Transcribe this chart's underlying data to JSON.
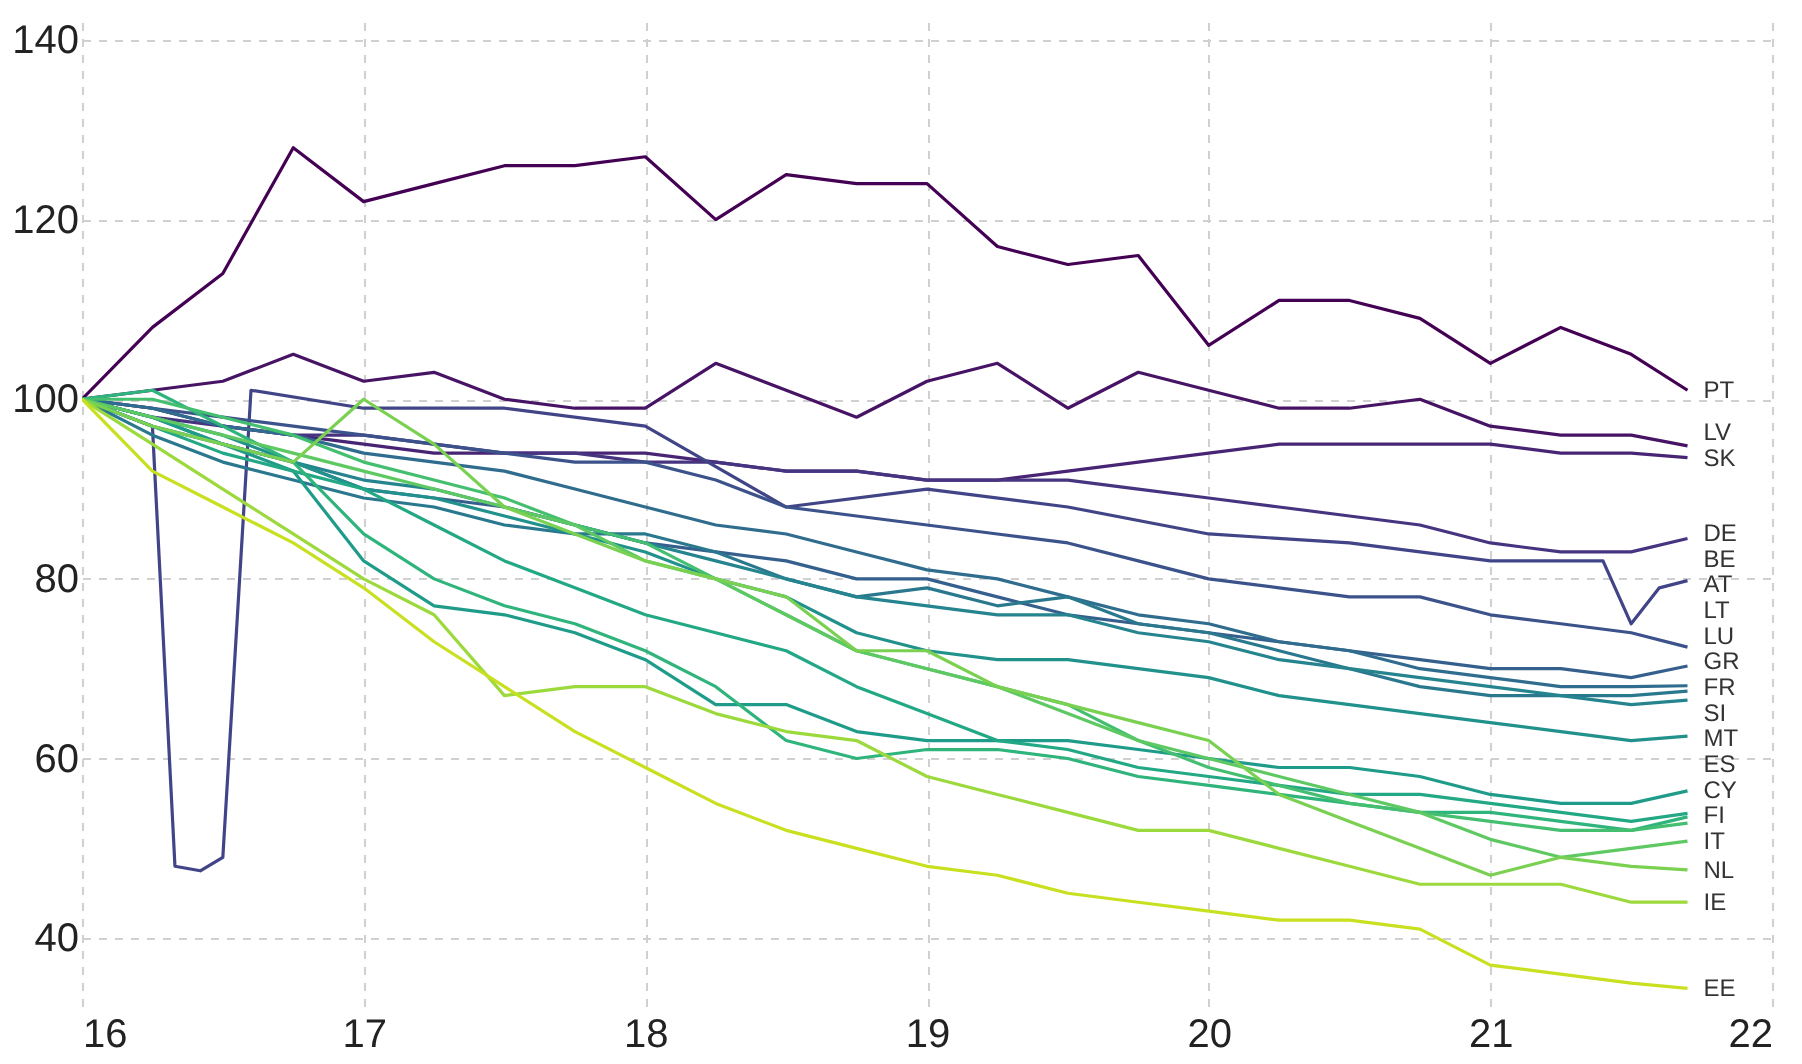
{
  "chart_data": {
    "type": "line",
    "x": [
      16,
      16.25,
      16.5,
      16.75,
      17,
      17.25,
      17.5,
      17.75,
      18,
      18.25,
      18.5,
      18.75,
      19,
      19.25,
      19.5,
      19.75,
      20,
      20.25,
      20.5,
      20.75,
      21,
      21.25,
      21.5,
      21.7
    ],
    "xlim": [
      16,
      22
    ],
    "xticks": [
      16,
      17,
      18,
      19,
      20,
      21,
      22
    ],
    "ylim": [
      32,
      142
    ],
    "yticks": [
      40,
      60,
      80,
      100,
      120,
      140
    ],
    "grid": true,
    "legend": false,
    "series": [
      {
        "name": "PT",
        "color": "#440154",
        "values": [
          100,
          108,
          114,
          128,
          122,
          124,
          126,
          126,
          127,
          120,
          125,
          124,
          124,
          117,
          115,
          116,
          106,
          111,
          111,
          109,
          104,
          108,
          105,
          101
        ]
      },
      {
        "name": "LV",
        "color": "#471365",
        "values": [
          100,
          101,
          102,
          105,
          102,
          103,
          100,
          99,
          99,
          104,
          101,
          98,
          102,
          104,
          99,
          103,
          101,
          99,
          99,
          100,
          97,
          96,
          96,
          94.8
        ]
      },
      {
        "name": "SK",
        "color": "#482475",
        "values": [
          100,
          99,
          97,
          96,
          95,
          94,
          94,
          94,
          94,
          93,
          92,
          92,
          91,
          91,
          92,
          93,
          94,
          95,
          95,
          95,
          95,
          94,
          94,
          93.5
        ]
      },
      {
        "name": "DE",
        "color": "#463480",
        "values": [
          100,
          98,
          97,
          96,
          96,
          95,
          94,
          94,
          93,
          93,
          92,
          92,
          91,
          91,
          91,
          90,
          89,
          88,
          87,
          86,
          84,
          83,
          83,
          84.5
        ]
      },
      {
        "name": "BE",
        "color": "#414487",
        "x": [
          16,
          16.25,
          16.33,
          16.42,
          16.5,
          16.6,
          17,
          17.5,
          18,
          18.5,
          19,
          19.5,
          20,
          20.5,
          21,
          21.4,
          21.5,
          21.6,
          21.7
        ],
        "values": [
          100,
          97,
          48,
          47.5,
          49,
          101,
          99,
          99,
          97,
          88,
          90,
          88,
          85,
          84,
          82,
          82,
          75,
          79,
          79.8
        ]
      },
      {
        "name": "AT",
        "color": "#3b528b",
        "values": [
          100,
          99,
          98,
          97,
          96,
          95,
          94,
          93,
          93,
          91,
          88,
          87,
          86,
          85,
          84,
          82,
          80,
          79,
          78,
          78,
          76,
          75,
          74,
          72.4
        ]
      },
      {
        "name": "LT",
        "color": "#355f8d",
        "values": [
          100,
          97,
          95,
          93,
          90,
          89,
          88,
          86,
          84,
          83,
          82,
          80,
          80,
          78,
          76,
          75,
          74,
          73,
          72,
          71,
          70,
          70,
          69,
          70.3
        ]
      },
      {
        "name": "LU",
        "color": "#2f6c8e",
        "values": [
          100,
          99,
          97,
          96,
          94,
          93,
          92,
          90,
          88,
          86,
          85,
          83,
          81,
          80,
          78,
          76,
          75,
          73,
          72,
          70,
          69,
          68,
          68,
          68.1
        ]
      },
      {
        "name": "GR",
        "color": "#2a788e",
        "values": [
          100,
          96,
          93,
          91,
          89,
          88,
          86,
          85,
          85,
          83,
          80,
          78,
          79,
          77,
          78,
          75,
          74,
          72,
          70,
          68,
          67,
          67,
          67,
          67.5
        ]
      },
      {
        "name": "FR",
        "color": "#25848e",
        "values": [
          100,
          98,
          95,
          93,
          91,
          90,
          88,
          86,
          84,
          82,
          80,
          78,
          77,
          76,
          76,
          74,
          73,
          71,
          70,
          69,
          68,
          67,
          66,
          66.5
        ]
      },
      {
        "name": "SI",
        "color": "#21918c",
        "values": [
          100,
          98,
          96,
          93,
          90,
          89,
          87,
          85,
          83,
          80,
          78,
          74,
          72,
          71,
          71,
          70,
          69,
          67,
          66,
          65,
          64,
          63,
          62,
          62.5
        ]
      },
      {
        "name": "MT",
        "color": "#1e9c89",
        "values": [
          100,
          98,
          95,
          92,
          82,
          77,
          76,
          74,
          71,
          66,
          66,
          63,
          62,
          62,
          62,
          61,
          60,
          59,
          59,
          58,
          56,
          55,
          55,
          56.4
        ]
      },
      {
        "name": "ES",
        "color": "#22a884",
        "values": [
          100,
          97,
          94,
          92,
          90,
          86,
          82,
          79,
          76,
          74,
          72,
          68,
          65,
          62,
          61,
          59,
          58,
          57,
          56,
          56,
          55,
          54,
          53,
          53.9
        ]
      },
      {
        "name": "CY",
        "color": "#2fb47c",
        "values": [
          100,
          101,
          97,
          93,
          85,
          80,
          77,
          75,
          72,
          68,
          62,
          60,
          61,
          61,
          60,
          58,
          57,
          56,
          55,
          54,
          54,
          53,
          52,
          53.5
        ]
      },
      {
        "name": "FI",
        "color": "#44bf70",
        "values": [
          100,
          100,
          98,
          96,
          93,
          91,
          89,
          86,
          84,
          80,
          76,
          72,
          70,
          68,
          66,
          62,
          59,
          57,
          55,
          54,
          53,
          52,
          52,
          52.8
        ]
      },
      {
        "name": "IT",
        "color": "#5ec962",
        "values": [
          100,
          98,
          96,
          94,
          92,
          90,
          88,
          86,
          82,
          80,
          76,
          72,
          70,
          68,
          65,
          62,
          60,
          58,
          56,
          54,
          51,
          49,
          50,
          50.8
        ]
      },
      {
        "name": "NL",
        "color": "#7ad151",
        "values": [
          100,
          97,
          95,
          93,
          100,
          95,
          88,
          85,
          82,
          80,
          78,
          72,
          72,
          68,
          66,
          64,
          62,
          56,
          53,
          50,
          47,
          49,
          48,
          47.6
        ]
      },
      {
        "name": "IE",
        "color": "#9bd93c",
        "values": [
          100,
          95,
          90,
          85,
          80,
          76,
          67,
          68,
          68,
          65,
          63,
          62,
          58,
          56,
          54,
          52,
          52,
          50,
          48,
          46,
          46,
          46,
          44,
          44
        ]
      },
      {
        "name": "EE",
        "color": "#c8e020",
        "values": [
          100,
          92,
          88,
          84,
          79,
          73,
          68,
          63,
          59,
          55,
          52,
          50,
          48,
          47,
          45,
          44,
          43,
          42,
          42,
          41,
          37,
          36,
          35,
          34.4
        ]
      }
    ]
  }
}
